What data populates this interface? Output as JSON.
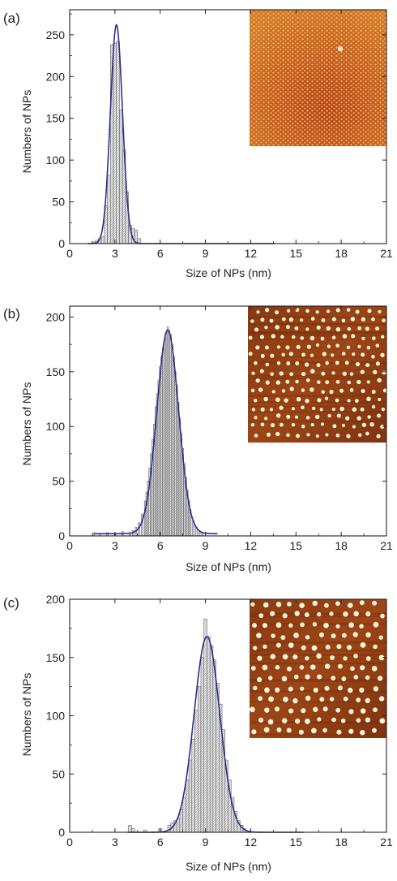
{
  "colors": {
    "bar_fill": "#e6e6e6",
    "bar_stroke": "#4a4a4a",
    "fit_line": "#2b2f8f",
    "axis": "#222222"
  },
  "chart_data": [
    {
      "type": "bar",
      "panel_label": "(a)",
      "xlabel": "Size of NPs (nm)",
      "ylabel": "Numbers of NPs",
      "xlim": [
        0,
        21
      ],
      "ylim": [
        0,
        280
      ],
      "x_ticks": [
        "0",
        "3",
        "6",
        "9",
        "12",
        "15",
        "18",
        "21"
      ],
      "y_ticks": [
        "0",
        "50",
        "100",
        "150",
        "200",
        "250"
      ],
      "bin_width": 0.2,
      "bins": [
        {
          "x": 1.6,
          "y": 2
        },
        {
          "x": 1.8,
          "y": 4
        },
        {
          "x": 2.0,
          "y": 6
        },
        {
          "x": 2.2,
          "y": 8
        },
        {
          "x": 2.4,
          "y": 45
        },
        {
          "x": 2.6,
          "y": 82
        },
        {
          "x": 2.8,
          "y": 238
        },
        {
          "x": 3.0,
          "y": 240
        },
        {
          "x": 3.2,
          "y": 242
        },
        {
          "x": 3.4,
          "y": 160
        },
        {
          "x": 3.6,
          "y": 112
        },
        {
          "x": 3.8,
          "y": 62
        },
        {
          "x": 4.0,
          "y": 22
        },
        {
          "x": 4.2,
          "y": 18
        },
        {
          "x": 4.4,
          "y": 16
        },
        {
          "x": 4.6,
          "y": 6
        }
      ],
      "fit": {
        "mean": 3.1,
        "sigma": 0.4,
        "amplitude": 262,
        "x_range": [
          1.2,
          13.6
        ]
      },
      "inset": {
        "style": "dense"
      }
    },
    {
      "type": "bar",
      "panel_label": "(b)",
      "xlabel": "Size of NPs (nm)",
      "ylabel": "Numbers of NPs",
      "xlim": [
        0,
        21
      ],
      "ylim": [
        0,
        210
      ],
      "x_ticks": [
        "0",
        "3",
        "6",
        "9",
        "12",
        "15",
        "18",
        "21"
      ],
      "y_ticks": [
        "0",
        "50",
        "100",
        "150",
        "200"
      ],
      "bin_width": 0.1,
      "bins": [
        {
          "x": 1.6,
          "y": 3
        },
        {
          "x": 2.0,
          "y": 2
        },
        {
          "x": 2.5,
          "y": 3
        },
        {
          "x": 3.0,
          "y": 2
        },
        {
          "x": 3.5,
          "y": 4
        },
        {
          "x": 4.0,
          "y": 3
        },
        {
          "x": 4.2,
          "y": 5
        },
        {
          "x": 4.4,
          "y": 8
        },
        {
          "x": 4.6,
          "y": 12
        },
        {
          "x": 4.8,
          "y": 20
        },
        {
          "x": 5.0,
          "y": 32
        },
        {
          "x": 5.1,
          "y": 40
        },
        {
          "x": 5.2,
          "y": 50
        },
        {
          "x": 5.3,
          "y": 62
        },
        {
          "x": 5.4,
          "y": 75
        },
        {
          "x": 5.5,
          "y": 88
        },
        {
          "x": 5.6,
          "y": 102
        },
        {
          "x": 5.7,
          "y": 118
        },
        {
          "x": 5.8,
          "y": 130
        },
        {
          "x": 5.9,
          "y": 142
        },
        {
          "x": 6.0,
          "y": 155
        },
        {
          "x": 6.1,
          "y": 164
        },
        {
          "x": 6.2,
          "y": 172
        },
        {
          "x": 6.3,
          "y": 180
        },
        {
          "x": 6.4,
          "y": 186
        },
        {
          "x": 6.5,
          "y": 191
        },
        {
          "x": 6.6,
          "y": 188
        },
        {
          "x": 6.7,
          "y": 184
        },
        {
          "x": 6.8,
          "y": 175
        },
        {
          "x": 6.9,
          "y": 164
        },
        {
          "x": 7.0,
          "y": 150
        },
        {
          "x": 7.1,
          "y": 138
        },
        {
          "x": 7.2,
          "y": 122
        },
        {
          "x": 7.3,
          "y": 108
        },
        {
          "x": 7.4,
          "y": 94
        },
        {
          "x": 7.5,
          "y": 80
        },
        {
          "x": 7.6,
          "y": 66
        },
        {
          "x": 7.7,
          "y": 54
        },
        {
          "x": 7.8,
          "y": 42
        },
        {
          "x": 7.9,
          "y": 32
        },
        {
          "x": 8.0,
          "y": 24
        },
        {
          "x": 8.2,
          "y": 14
        },
        {
          "x": 8.4,
          "y": 8
        },
        {
          "x": 8.6,
          "y": 5
        },
        {
          "x": 8.8,
          "y": 3
        }
      ],
      "fit": {
        "mean": 6.5,
        "sigma": 0.72,
        "amplitude": 186,
        "baseline": 2,
        "x_range": [
          1.6,
          9.8
        ]
      },
      "inset": {
        "style": "sparse"
      }
    },
    {
      "type": "bar",
      "panel_label": "(c)",
      "xlabel": "Size of NPs (nm)",
      "ylabel": "Numbers of NPs",
      "xlim": [
        0,
        21
      ],
      "ylim": [
        0,
        200
      ],
      "x_ticks": [
        "0",
        "3",
        "6",
        "9",
        "12",
        "15",
        "18",
        "21"
      ],
      "y_ticks": [
        "0",
        "50",
        "100",
        "150",
        "200"
      ],
      "bin_width": 0.2,
      "bins": [
        {
          "x": 4.0,
          "y": 6
        },
        {
          "x": 4.2,
          "y": 3
        },
        {
          "x": 5.0,
          "y": 2
        },
        {
          "x": 6.0,
          "y": 3
        },
        {
          "x": 6.6,
          "y": 6
        },
        {
          "x": 6.8,
          "y": 8
        },
        {
          "x": 7.0,
          "y": 10
        },
        {
          "x": 7.2,
          "y": 12
        },
        {
          "x": 7.4,
          "y": 20
        },
        {
          "x": 7.6,
          "y": 30
        },
        {
          "x": 7.8,
          "y": 45
        },
        {
          "x": 8.0,
          "y": 62
        },
        {
          "x": 8.2,
          "y": 80
        },
        {
          "x": 8.4,
          "y": 105
        },
        {
          "x": 8.6,
          "y": 125
        },
        {
          "x": 8.8,
          "y": 150
        },
        {
          "x": 9.0,
          "y": 183
        },
        {
          "x": 9.2,
          "y": 168
        },
        {
          "x": 9.4,
          "y": 160
        },
        {
          "x": 9.6,
          "y": 148
        },
        {
          "x": 9.8,
          "y": 128
        },
        {
          "x": 10.0,
          "y": 110
        },
        {
          "x": 10.2,
          "y": 88
        },
        {
          "x": 10.4,
          "y": 62
        },
        {
          "x": 10.6,
          "y": 45
        },
        {
          "x": 10.8,
          "y": 30
        },
        {
          "x": 11.0,
          "y": 18
        },
        {
          "x": 11.2,
          "y": 10
        },
        {
          "x": 11.4,
          "y": 6
        },
        {
          "x": 11.6,
          "y": 3
        }
      ],
      "fit": {
        "mean": 9.1,
        "sigma": 0.85,
        "amplitude": 168,
        "x_range": [
          3.8,
          15.5
        ]
      },
      "inset": {
        "style": "sparse"
      }
    }
  ]
}
